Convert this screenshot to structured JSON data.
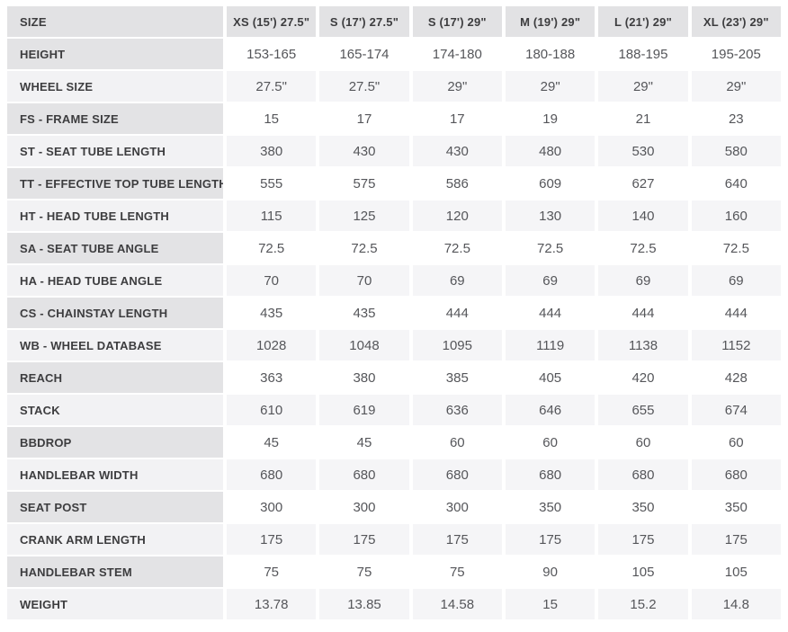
{
  "chart_data": {
    "type": "table",
    "corner_header": "SIZE",
    "column_headers": [
      "XS (15') 27.5\"",
      "S (17') 27.5\"",
      "S (17') 29\"",
      "M (19') 29\"",
      "L (21') 29\"",
      "XL (23') 29\""
    ],
    "rows": [
      {
        "label": "HEIGHT",
        "values": [
          "153-165",
          "165-174",
          "174-180",
          "180-188",
          "188-195",
          "195-205"
        ]
      },
      {
        "label": "WHEEL SIZE",
        "values": [
          "27.5\"",
          "27.5\"",
          "29\"",
          "29\"",
          "29\"",
          "29\""
        ]
      },
      {
        "label": "FS - FRAME SIZE",
        "values": [
          "15",
          "17",
          "17",
          "19",
          "21",
          "23"
        ]
      },
      {
        "label": "ST - SEAT TUBE LENGTH",
        "values": [
          "380",
          "430",
          "430",
          "480",
          "530",
          "580"
        ]
      },
      {
        "label": "TT - EFFECTIVE TOP TUBE LENGTH",
        "values": [
          "555",
          "575",
          "586",
          "609",
          "627",
          "640"
        ]
      },
      {
        "label": "HT - HEAD TUBE LENGTH",
        "values": [
          "115",
          "125",
          "120",
          "130",
          "140",
          "160"
        ]
      },
      {
        "label": "SA - SEAT TUBE ANGLE",
        "values": [
          "72.5",
          "72.5",
          "72.5",
          "72.5",
          "72.5",
          "72.5"
        ]
      },
      {
        "label": "HA - HEAD TUBE ANGLE",
        "values": [
          "70",
          "70",
          "69",
          "69",
          "69",
          "69"
        ]
      },
      {
        "label": "CS - CHAINSTAY LENGTH",
        "values": [
          "435",
          "435",
          "444",
          "444",
          "444",
          "444"
        ]
      },
      {
        "label": "WB - WHEEL DATABASE",
        "values": [
          "1028",
          "1048",
          "1095",
          "1119",
          "1138",
          "1152"
        ]
      },
      {
        "label": "REACH",
        "values": [
          "363",
          "380",
          "385",
          "405",
          "420",
          "428"
        ]
      },
      {
        "label": "STACK",
        "values": [
          "610",
          "619",
          "636",
          "646",
          "655",
          "674"
        ]
      },
      {
        "label": "BBDROP",
        "values": [
          "45",
          "45",
          "60",
          "60",
          "60",
          "60"
        ]
      },
      {
        "label": "HANDLEBAR WIDTH",
        "values": [
          "680",
          "680",
          "680",
          "680",
          "680",
          "680"
        ]
      },
      {
        "label": "SEAT POST",
        "values": [
          "300",
          "300",
          "300",
          "350",
          "350",
          "350"
        ]
      },
      {
        "label": "CRANK ARM LENGTH",
        "values": [
          "175",
          "175",
          "175",
          "175",
          "175",
          "175"
        ]
      },
      {
        "label": "HANDLEBAR STEM",
        "values": [
          "75",
          "75",
          "75",
          "90",
          "105",
          "105"
        ]
      },
      {
        "label": "WEIGHT",
        "values": [
          "13.78",
          "13.85",
          "14.58",
          "15",
          "15.2",
          "14.8"
        ]
      }
    ]
  },
  "colors": {
    "header_bg": "#e2e2e4",
    "label_odd_bg": "#e3e3e5",
    "label_even_bg": "#f2f2f4",
    "value_odd_bg": "#ffffff",
    "value_even_bg": "#f5f5f7",
    "label_text": "#3d3d3f",
    "value_text": "#55565a",
    "page_bg": "#ffffff"
  }
}
